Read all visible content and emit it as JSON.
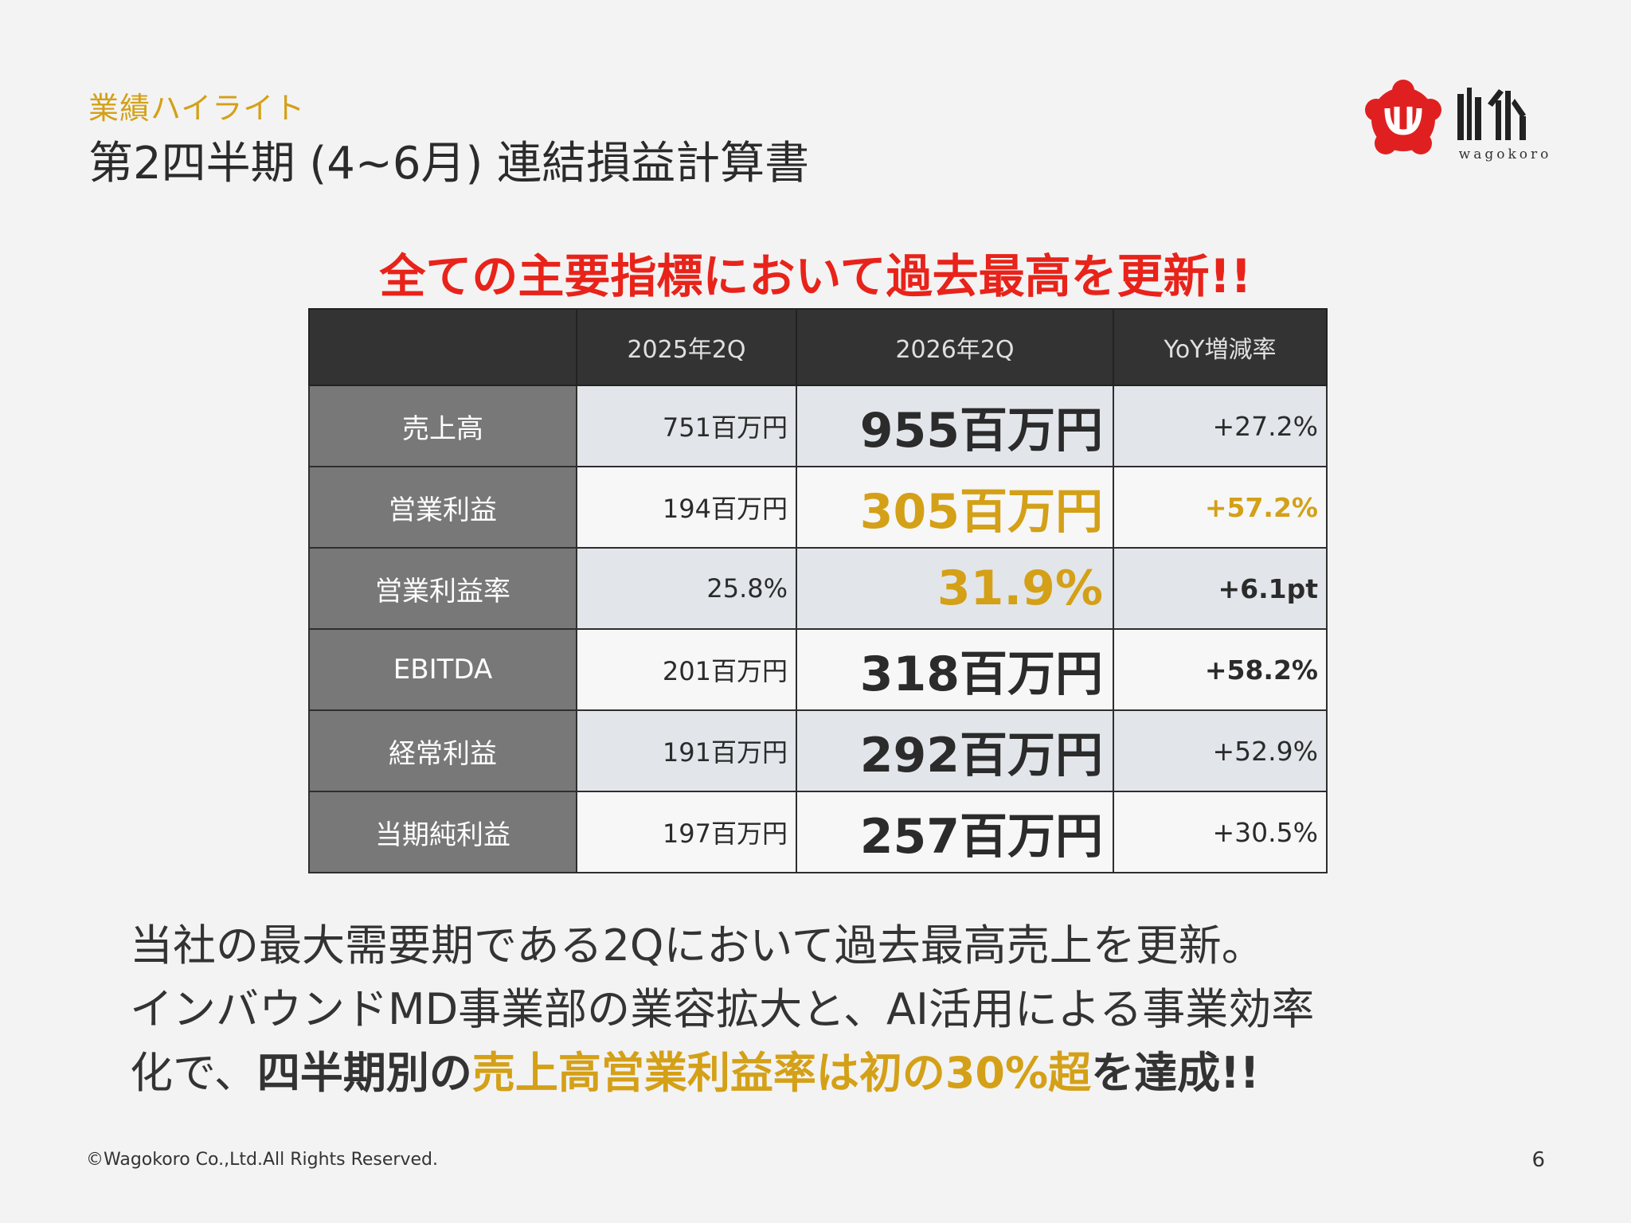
{
  "header": {
    "section_label": "業績ハイライト",
    "title": "第2四半期 (4~6月) 連結損益計算書"
  },
  "logo": {
    "word": "wagokoro"
  },
  "headline": "全ての主要指標において過去最高を更新!!",
  "table": {
    "headers": [
      "",
      "2025年2Q",
      "2026年2Q",
      "YoY増減率"
    ],
    "rows": [
      {
        "label": "売上高",
        "prev": "751百万円",
        "cur": "955百万円",
        "yoy": "+27.2%"
      },
      {
        "label": "営業利益",
        "prev": "194百万円",
        "cur": "305百万円",
        "yoy": "+57.2%"
      },
      {
        "label": "営業利益率",
        "prev": "25.8%",
        "cur": "31.9%",
        "yoy": "+6.1pt"
      },
      {
        "label": "EBITDA",
        "prev": "201百万円",
        "cur": "318百万円",
        "yoy": "+58.2%"
      },
      {
        "label": "経常利益",
        "prev": "191百万円",
        "cur": "292百万円",
        "yoy": "+52.9%"
      },
      {
        "label": "当期純利益",
        "prev": "197百万円",
        "cur": "257百万円",
        "yoy": "+30.5%"
      }
    ]
  },
  "body": {
    "line1": "当社の最大需要期である2Qにおいて過去最高売上を更新。",
    "line2": "インバウンドMD事業部の業容拡大と、AI活用による事業効率",
    "line3_a": "化で、",
    "line3_b": "四半期別の",
    "line3_c": "売上高営業利益率は初の30%超",
    "line3_d": "を達成!!"
  },
  "footer": {
    "copyright": "©Wagokoro Co.,Ltd.All Rights Reserved.",
    "page_number": "6"
  },
  "colors": {
    "accent_gold": "#d4a017",
    "headline_red": "#e8231a",
    "logo_red": "#e02020"
  }
}
